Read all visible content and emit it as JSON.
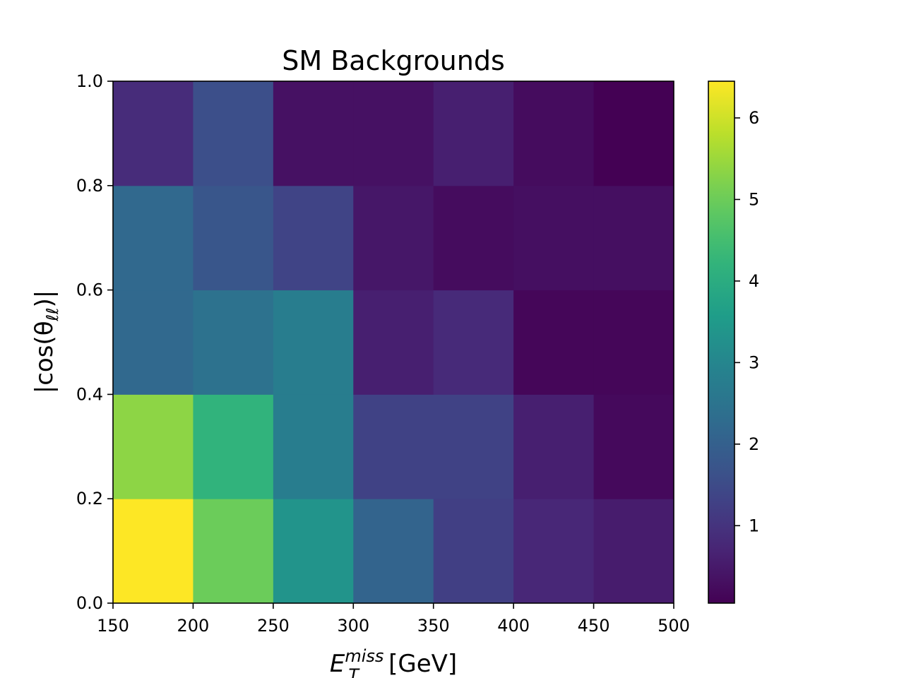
{
  "chart_data": {
    "type": "heatmap",
    "title": "SM Backgrounds",
    "xlabel": {
      "base": "E",
      "sup": "miss",
      "sub": "T",
      "unit": "[GeV]"
    },
    "ylabel": {
      "pre": "|cos(θ",
      "sub": "ℓℓ",
      "post": ")|"
    },
    "x_edges": [
      150,
      200,
      250,
      300,
      350,
      400,
      450,
      500
    ],
    "y_edges": [
      0.0,
      0.2,
      0.4,
      0.6,
      0.8,
      1.0
    ],
    "xlim": [
      150,
      500
    ],
    "ylim": [
      0.0,
      1.0
    ],
    "x_ticks": [
      150,
      200,
      250,
      300,
      350,
      400,
      450,
      500
    ],
    "x_tick_labels": [
      "150",
      "200",
      "250",
      "300",
      "350",
      "400",
      "450",
      "500"
    ],
    "y_ticks": [
      0.0,
      0.2,
      0.4,
      0.6,
      0.8,
      1.0
    ],
    "y_tick_labels": [
      "0.0",
      "0.2",
      "0.4",
      "0.6",
      "0.8",
      "1.0"
    ],
    "values": [
      [
        6.45,
        5.0,
        3.35,
        2.1,
        1.25,
        0.75,
        0.55
      ],
      [
        5.35,
        4.2,
        2.75,
        1.3,
        1.3,
        0.6,
        0.2
      ],
      [
        2.2,
        2.45,
        2.75,
        0.6,
        0.8,
        0.15,
        0.15
      ],
      [
        2.2,
        1.75,
        1.35,
        0.45,
        0.25,
        0.3,
        0.3
      ],
      [
        0.85,
        1.6,
        0.35,
        0.35,
        0.6,
        0.25,
        0.05
      ]
    ],
    "colormap": "viridis",
    "colorbar": {
      "min": 0.05,
      "max": 6.45,
      "ticks": [
        1,
        2,
        3,
        4,
        5,
        6
      ],
      "tick_labels": [
        "1",
        "2",
        "3",
        "4",
        "5",
        "6"
      ]
    },
    "grid": false
  }
}
